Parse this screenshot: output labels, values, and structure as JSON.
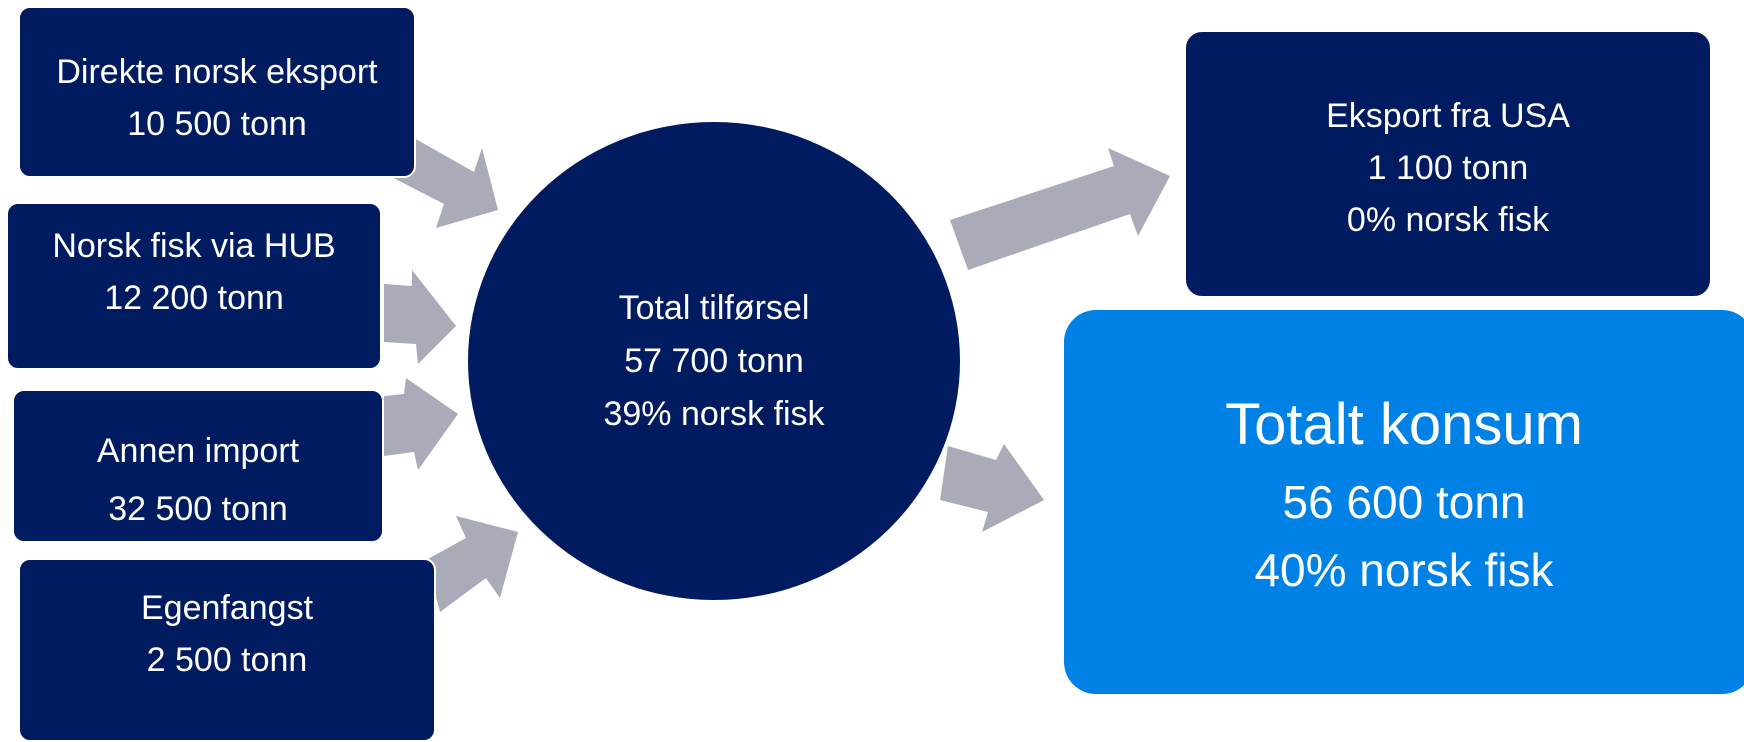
{
  "sources": [
    {
      "title": "Direkte norsk eksport",
      "value": "10 500 tonn"
    },
    {
      "title": "Norsk fisk via HUB",
      "value": "12 200 tonn"
    },
    {
      "title": "Annen import",
      "value": "32 500 tonn"
    },
    {
      "title": "Egenfangst",
      "value": "2 500 tonn"
    }
  ],
  "total": {
    "title": "Total tilførsel",
    "value": "57 700 tonn",
    "share": "39% norsk fisk"
  },
  "export": {
    "title": "Eksport fra USA",
    "value": "1 100 tonn",
    "share": "0% norsk fisk"
  },
  "consumption": {
    "title": "Totalt konsum",
    "value": "56 600 tonn",
    "share": "40% norsk fisk"
  },
  "colors": {
    "dark_navy": "#011b60",
    "bright_blue": "#0081e6",
    "arrow_gray": "#a9abb8"
  }
}
